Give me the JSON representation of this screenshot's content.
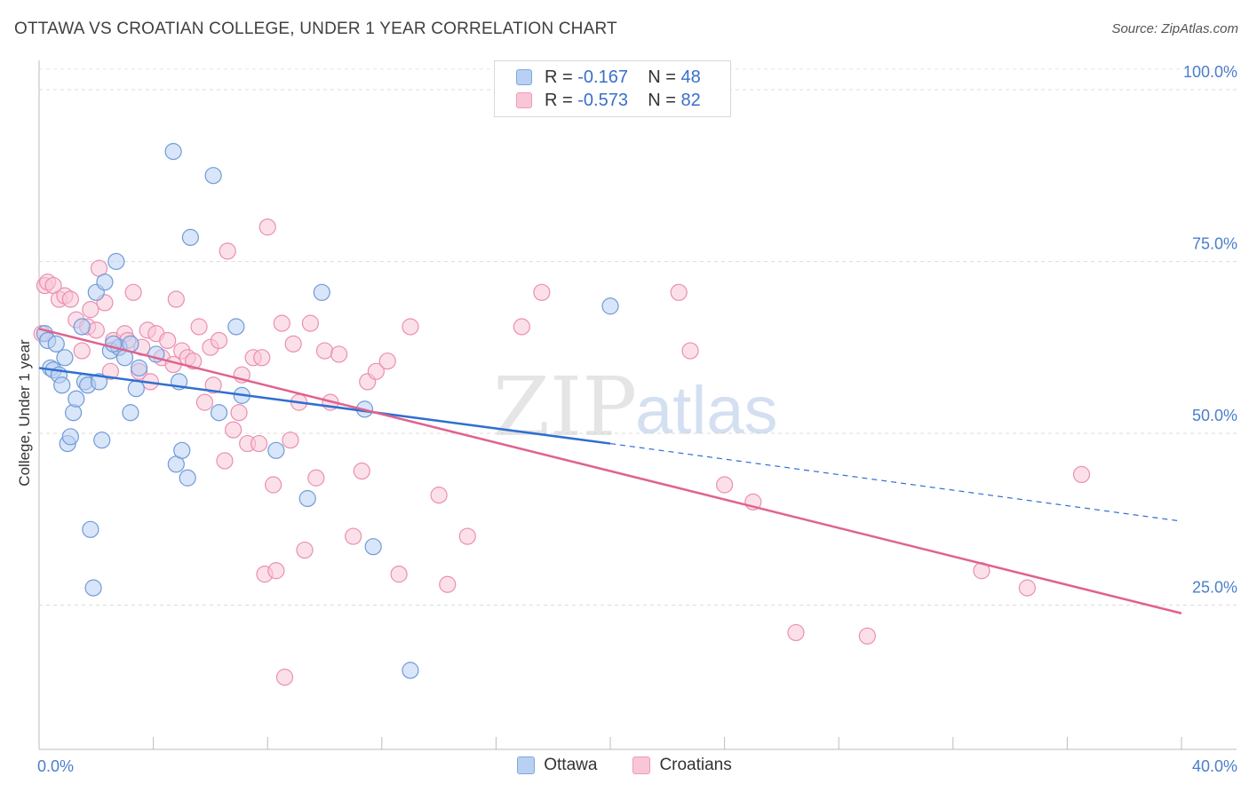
{
  "title": "OTTAWA VS CROATIAN COLLEGE, UNDER 1 YEAR CORRELATION CHART",
  "source": "Source: ZipAtlas.com",
  "watermark": {
    "zip": "ZIP",
    "atlas": "atlas"
  },
  "legend": {
    "rows": [
      {
        "r_label": "R =",
        "r_value": "-0.167",
        "n_label": "N =",
        "n_value": "48"
      },
      {
        "r_label": "R =",
        "r_value": "-0.573",
        "n_label": "N =",
        "n_value": "82"
      }
    ]
  },
  "chart_data": {
    "type": "scatter",
    "xlabel": "",
    "ylabel": "College, Under 1 year",
    "xlim": [
      0,
      40
    ],
    "ylim": [
      4,
      104
    ],
    "x_tick_labels": [
      "0.0%",
      "40.0%"
    ],
    "y_ticks": [
      25,
      50,
      75,
      100
    ],
    "y_tick_labels": [
      "25.0%",
      "50.0%",
      "75.0%",
      "100.0%"
    ],
    "grid": "horizontal dashed",
    "legend_placement": "bottom-center",
    "colors": {
      "ottawa": "#6fa0e0",
      "ottawa_line": "#2e6fd0",
      "croatians": "#f08cb0",
      "croatians_line": "#e0628f"
    },
    "series": [
      {
        "name": "Ottawa",
        "color": "#6fa0e0",
        "trend": {
          "x0": 0,
          "y0": 59.5,
          "x1": 20,
          "y1": 48.5,
          "dashed_to_x": 40,
          "dashed_to_y": 37.2
        },
        "points": [
          [
            0.2,
            64.5
          ],
          [
            0.3,
            63.5
          ],
          [
            0.4,
            59.5
          ],
          [
            0.5,
            59.2
          ],
          [
            0.6,
            63.0
          ],
          [
            0.7,
            58.5
          ],
          [
            0.8,
            57.0
          ],
          [
            0.9,
            61.0
          ],
          [
            1.0,
            48.5
          ],
          [
            1.1,
            49.5
          ],
          [
            1.2,
            53.0
          ],
          [
            1.3,
            55.0
          ],
          [
            1.5,
            65.5
          ],
          [
            1.6,
            57.5
          ],
          [
            1.7,
            57.0
          ],
          [
            1.8,
            36.0
          ],
          [
            1.9,
            27.5
          ],
          [
            2.0,
            70.5
          ],
          [
            2.1,
            57.5
          ],
          [
            2.2,
            49.0
          ],
          [
            2.3,
            72.0
          ],
          [
            2.5,
            62.0
          ],
          [
            2.7,
            75.0
          ],
          [
            2.8,
            62.5
          ],
          [
            3.0,
            61.0
          ],
          [
            3.2,
            53.0
          ],
          [
            3.4,
            56.5
          ],
          [
            3.5,
            59.5
          ],
          [
            4.1,
            61.5
          ],
          [
            4.7,
            91.0
          ],
          [
            4.8,
            45.5
          ],
          [
            4.9,
            57.5
          ],
          [
            5.0,
            47.5
          ],
          [
            5.2,
            43.5
          ],
          [
            5.3,
            78.5
          ],
          [
            6.1,
            87.5
          ],
          [
            6.3,
            53.0
          ],
          [
            6.9,
            65.5
          ],
          [
            7.1,
            55.5
          ],
          [
            8.3,
            47.5
          ],
          [
            9.4,
            40.5
          ],
          [
            9.9,
            70.5
          ],
          [
            11.4,
            53.5
          ],
          [
            11.7,
            33.5
          ],
          [
            13.0,
            15.5
          ],
          [
            20.0,
            68.5
          ],
          [
            3.2,
            63.0
          ],
          [
            2.6,
            63.0
          ]
        ]
      },
      {
        "name": "Croatians",
        "color": "#f08cb0",
        "trend": {
          "x0": 0,
          "y0": 65.2,
          "x1": 40,
          "y1": 23.8
        },
        "points": [
          [
            0.1,
            64.5
          ],
          [
            0.2,
            71.5
          ],
          [
            0.3,
            72.0
          ],
          [
            0.5,
            71.5
          ],
          [
            0.7,
            69.5
          ],
          [
            0.9,
            70.0
          ],
          [
            1.1,
            69.5
          ],
          [
            1.3,
            66.5
          ],
          [
            1.5,
            62.0
          ],
          [
            1.7,
            65.5
          ],
          [
            1.8,
            68.0
          ],
          [
            2.0,
            65.0
          ],
          [
            2.1,
            74.0
          ],
          [
            2.3,
            69.0
          ],
          [
            2.5,
            59.0
          ],
          [
            2.6,
            63.5
          ],
          [
            2.8,
            62.5
          ],
          [
            3.0,
            64.5
          ],
          [
            3.1,
            63.5
          ],
          [
            3.3,
            70.5
          ],
          [
            3.5,
            59.0
          ],
          [
            3.6,
            62.5
          ],
          [
            3.8,
            65.0
          ],
          [
            3.9,
            57.5
          ],
          [
            4.1,
            64.5
          ],
          [
            4.3,
            61.0
          ],
          [
            4.5,
            63.5
          ],
          [
            4.7,
            60.0
          ],
          [
            4.8,
            69.5
          ],
          [
            5.0,
            62.0
          ],
          [
            5.2,
            61.0
          ],
          [
            5.4,
            60.5
          ],
          [
            5.6,
            65.5
          ],
          [
            5.8,
            54.5
          ],
          [
            6.0,
            62.5
          ],
          [
            6.1,
            57.0
          ],
          [
            6.3,
            63.5
          ],
          [
            6.5,
            46.0
          ],
          [
            6.6,
            76.5
          ],
          [
            6.8,
            50.5
          ],
          [
            7.0,
            53.0
          ],
          [
            7.1,
            58.5
          ],
          [
            7.3,
            48.5
          ],
          [
            7.5,
            61.0
          ],
          [
            7.7,
            48.5
          ],
          [
            7.8,
            61.0
          ],
          [
            7.9,
            29.5
          ],
          [
            8.0,
            80.0
          ],
          [
            8.2,
            42.5
          ],
          [
            8.3,
            30.0
          ],
          [
            8.5,
            66.0
          ],
          [
            8.6,
            14.5
          ],
          [
            8.8,
            49.0
          ],
          [
            8.9,
            63.0
          ],
          [
            9.1,
            54.5
          ],
          [
            9.3,
            33.0
          ],
          [
            9.5,
            66.0
          ],
          [
            9.7,
            43.5
          ],
          [
            10.0,
            62.0
          ],
          [
            10.2,
            54.5
          ],
          [
            10.5,
            61.5
          ],
          [
            11.0,
            35.0
          ],
          [
            11.3,
            44.5
          ],
          [
            11.5,
            57.5
          ],
          [
            11.8,
            59.0
          ],
          [
            12.2,
            60.5
          ],
          [
            12.6,
            29.5
          ],
          [
            13.0,
            65.5
          ],
          [
            14.0,
            41.0
          ],
          [
            14.3,
            28.0
          ],
          [
            15.0,
            35.0
          ],
          [
            16.9,
            65.5
          ],
          [
            17.6,
            70.5
          ],
          [
            22.4,
            70.5
          ],
          [
            22.8,
            62.0
          ],
          [
            24.0,
            42.5
          ],
          [
            25.0,
            40.0
          ],
          [
            26.5,
            21.0
          ],
          [
            29.0,
            20.5
          ],
          [
            33.0,
            30.0
          ],
          [
            34.6,
            27.5
          ],
          [
            36.5,
            44.0
          ]
        ]
      }
    ]
  }
}
